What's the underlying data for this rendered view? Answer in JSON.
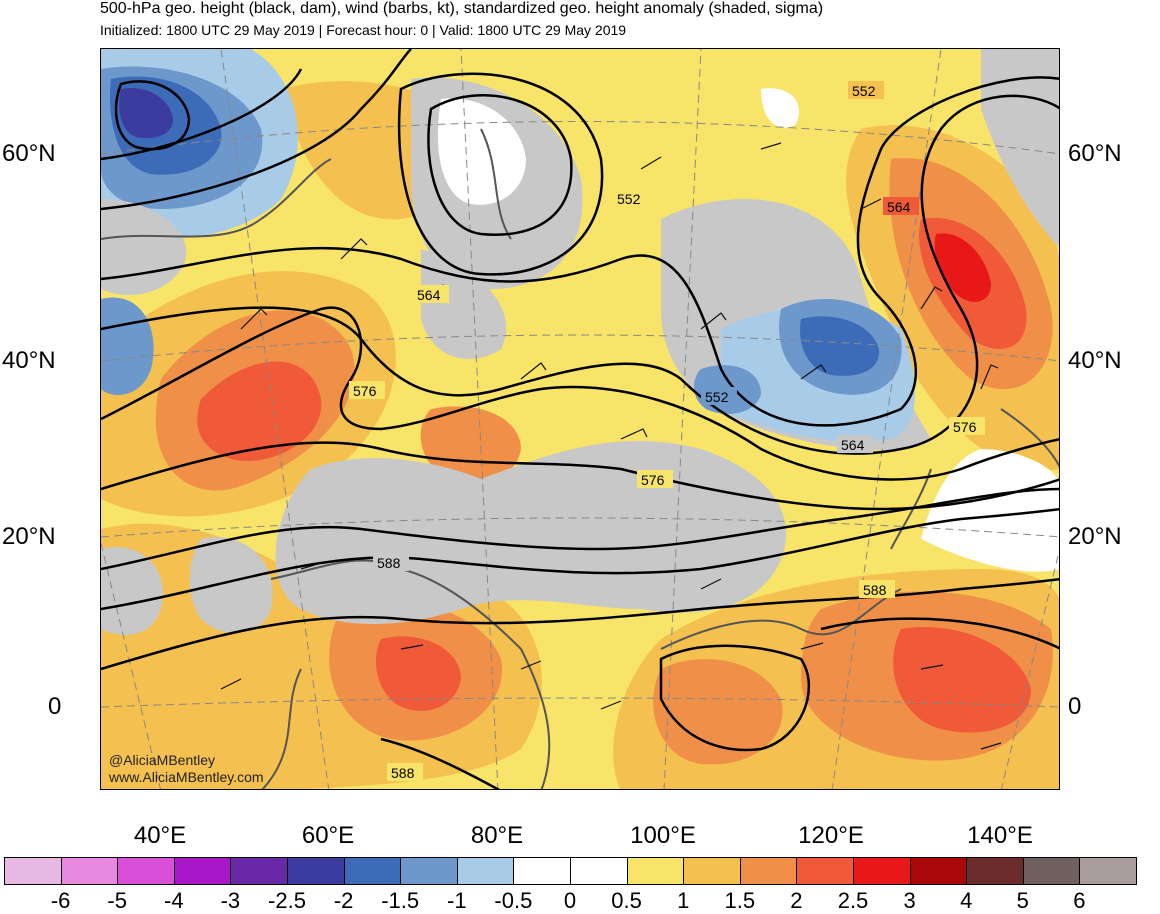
{
  "header": {
    "title": "500-hPa geo. height (black, dam), wind (barbs, kt), standardized geo. height anomaly (shaded, sigma)",
    "subtitle": "Initialized: 1800 UTC 29 May 2019 | Forecast hour: 0 | Valid: 1800 UTC 29 May 2019"
  },
  "map": {
    "lat_labels_left": [
      "60°N",
      "40°N",
      "20°N",
      "0"
    ],
    "lat_labels_right": [
      "60°N",
      "40°N",
      "20°N",
      "0"
    ],
    "lon_labels": [
      "40°E",
      "60°E",
      "80°E",
      "100°E",
      "120°E",
      "140°E"
    ],
    "contour_labels": [
      "552",
      "552",
      "552",
      "564",
      "564",
      "564",
      "576",
      "576",
      "576",
      "588",
      "588",
      "588"
    ],
    "credits": [
      "@AliciaMBentley",
      "www.AliciaMBentley.com"
    ]
  },
  "colorbar": {
    "labels": [
      "-6",
      "-5",
      "-4",
      "-3",
      "-2.5",
      "-2",
      "-1.5",
      "-1",
      "-0.5",
      "0",
      "0.5",
      "1",
      "1.5",
      "2",
      "2.5",
      "3",
      "4",
      "5",
      "6"
    ],
    "colors": [
      "#e8b8e4",
      "#e888e0",
      "#d850d8",
      "#a818c8",
      "#6828a8",
      "#3c3ca0",
      "#3c6cb8",
      "#6c98cc",
      "#a8cce8",
      "#ffffff",
      "#ffffff",
      "#f8e468",
      "#f4c050",
      "#f09048",
      "#f05a38",
      "#e81818",
      "#a80808",
      "#6c2c2c",
      "#706060",
      "#a89c9c"
    ]
  }
}
